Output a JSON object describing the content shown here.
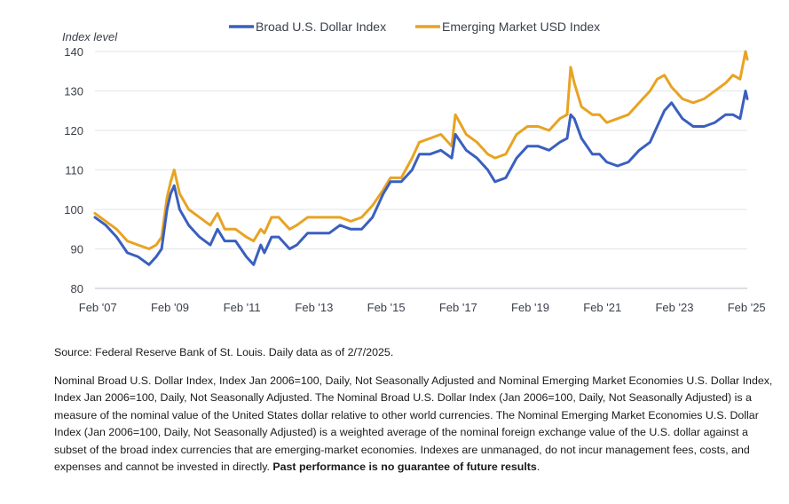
{
  "chart_data": {
    "type": "line",
    "ylabel": "Index level",
    "ylim": [
      80,
      140
    ],
    "yticks": [
      80,
      90,
      100,
      110,
      120,
      130,
      140
    ],
    "xlim": [
      2007.0,
      2025.1
    ],
    "xticks": [
      {
        "value": 2007.08,
        "label": "Feb '07"
      },
      {
        "value": 2009.08,
        "label": "Feb '09"
      },
      {
        "value": 2011.08,
        "label": "Feb '11"
      },
      {
        "value": 2013.08,
        "label": "Feb '13"
      },
      {
        "value": 2015.08,
        "label": "Feb '15"
      },
      {
        "value": 2017.08,
        "label": "Feb '17"
      },
      {
        "value": 2019.08,
        "label": "Feb '19"
      },
      {
        "value": 2021.08,
        "label": "Feb '21"
      },
      {
        "value": 2023.08,
        "label": "Feb '23"
      },
      {
        "value": 2025.08,
        "label": "Feb '25"
      }
    ],
    "grid": true,
    "legend": "top-center",
    "series": [
      {
        "name": "Broad U.S. Dollar Index",
        "color": "#3a5fbf",
        "x": [
          2007.0,
          2007.3,
          2007.6,
          2007.9,
          2008.2,
          2008.5,
          2008.7,
          2008.85,
          2009.0,
          2009.1,
          2009.2,
          2009.35,
          2009.6,
          2009.9,
          2010.2,
          2010.4,
          2010.6,
          2010.9,
          2011.2,
          2011.4,
          2011.6,
          2011.7,
          2011.9,
          2012.1,
          2012.4,
          2012.6,
          2012.9,
          2013.2,
          2013.5,
          2013.8,
          2014.1,
          2014.4,
          2014.7,
          2015.0,
          2015.2,
          2015.5,
          2015.8,
          2016.0,
          2016.3,
          2016.6,
          2016.9,
          2017.0,
          2017.3,
          2017.6,
          2017.9,
          2018.1,
          2018.4,
          2018.7,
          2019.0,
          2019.3,
          2019.6,
          2019.9,
          2020.1,
          2020.2,
          2020.3,
          2020.5,
          2020.8,
          2021.0,
          2021.2,
          2021.5,
          2021.8,
          2022.1,
          2022.4,
          2022.6,
          2022.8,
          2023.0,
          2023.3,
          2023.6,
          2023.9,
          2024.2,
          2024.5,
          2024.7,
          2024.9,
          2025.05,
          2025.1
        ],
        "y": [
          98,
          96,
          93,
          89,
          88,
          86,
          88,
          90,
          100,
          104,
          106,
          100,
          96,
          93,
          91,
          95,
          92,
          92,
          88,
          86,
          91,
          89,
          93,
          93,
          90,
          91,
          94,
          94,
          94,
          96,
          95,
          95,
          98,
          104,
          107,
          107,
          110,
          114,
          114,
          115,
          113,
          119,
          115,
          113,
          110,
          107,
          108,
          113,
          116,
          116,
          115,
          117,
          118,
          124,
          123,
          118,
          114,
          114,
          112,
          111,
          112,
          115,
          117,
          121,
          125,
          127,
          123,
          121,
          121,
          122,
          124,
          124,
          123,
          130,
          128
        ],
        "values": [
          98,
          96,
          93,
          89,
          88,
          86,
          88,
          90,
          100,
          104,
          106,
          100,
          96,
          93,
          91,
          95,
          92,
          92,
          88,
          86,
          91,
          89,
          93,
          93,
          90,
          91,
          94,
          94,
          94,
          96,
          95,
          95,
          98,
          104,
          107,
          107,
          110,
          114,
          114,
          115,
          113,
          119,
          115,
          113,
          110,
          107,
          108,
          113,
          116,
          116,
          115,
          117,
          118,
          124,
          123,
          118,
          114,
          114,
          112,
          111,
          112,
          115,
          117,
          121,
          125,
          127,
          123,
          121,
          121,
          122,
          124,
          124,
          123,
          130,
          128
        ]
      },
      {
        "name": "Emerging Market USD Index",
        "color": "#e8a322",
        "x": [
          2007.0,
          2007.3,
          2007.6,
          2007.9,
          2008.2,
          2008.5,
          2008.7,
          2008.85,
          2009.0,
          2009.1,
          2009.2,
          2009.35,
          2009.6,
          2009.9,
          2010.2,
          2010.4,
          2010.6,
          2010.9,
          2011.2,
          2011.4,
          2011.6,
          2011.7,
          2011.9,
          2012.1,
          2012.4,
          2012.6,
          2012.9,
          2013.2,
          2013.5,
          2013.8,
          2014.1,
          2014.4,
          2014.7,
          2015.0,
          2015.2,
          2015.5,
          2015.8,
          2016.0,
          2016.3,
          2016.6,
          2016.9,
          2017.0,
          2017.3,
          2017.6,
          2017.9,
          2018.1,
          2018.4,
          2018.7,
          2019.0,
          2019.3,
          2019.6,
          2019.9,
          2020.1,
          2020.2,
          2020.3,
          2020.5,
          2020.8,
          2021.0,
          2021.2,
          2021.5,
          2021.8,
          2022.1,
          2022.4,
          2022.6,
          2022.8,
          2023.0,
          2023.3,
          2023.6,
          2023.9,
          2024.2,
          2024.5,
          2024.7,
          2024.9,
          2025.05,
          2025.1
        ],
        "y": [
          99,
          97,
          95,
          92,
          91,
          90,
          91,
          93,
          103,
          107,
          110,
          104,
          100,
          98,
          96,
          99,
          95,
          95,
          93,
          92,
          95,
          94,
          98,
          98,
          95,
          96,
          98,
          98,
          98,
          98,
          97,
          98,
          101,
          105,
          108,
          108,
          113,
          117,
          118,
          119,
          116,
          124,
          119,
          117,
          114,
          113,
          114,
          119,
          121,
          121,
          120,
          123,
          124,
          136,
          132,
          126,
          124,
          124,
          122,
          123,
          124,
          127,
          130,
          133,
          134,
          131,
          128,
          127,
          128,
          130,
          132,
          134,
          133,
          140,
          138
        ],
        "values": [
          99,
          97,
          95,
          92,
          91,
          90,
          91,
          93,
          103,
          107,
          110,
          104,
          100,
          98,
          96,
          99,
          95,
          95,
          93,
          92,
          95,
          94,
          98,
          98,
          95,
          96,
          98,
          98,
          98,
          98,
          97,
          98,
          101,
          105,
          108,
          108,
          113,
          117,
          118,
          119,
          116,
          124,
          119,
          117,
          114,
          113,
          114,
          119,
          121,
          121,
          120,
          123,
          124,
          136,
          132,
          126,
          124,
          124,
          122,
          123,
          124,
          127,
          130,
          133,
          134,
          131,
          128,
          127,
          128,
          130,
          132,
          134,
          133,
          140,
          138
        ]
      }
    ]
  },
  "notes": {
    "source": "Source: Federal Reserve Bank of St. Louis. Daily data as of 2/7/2025.",
    "body": "Nominal Broad U.S. Dollar Index, Index Jan 2006=100, Daily, Not Seasonally Adjusted and Nominal Emerging Market Economies U.S. Dollar Index, Index Jan 2006=100, Daily, Not Seasonally Adjusted. The Nominal Broad U.S. Dollar Index (Jan 2006=100, Daily, Not Seasonally Adjusted) is a measure of the nominal value of the United States dollar relative to other world currencies. The Nominal Emerging Market Economies U.S. Dollar Index (Jan 2006=100, Daily, Not Seasonally Adjusted) is a weighted average of the nominal foreign exchange value of the U.S. dollar against a subset of the broad index currencies that are emerging-market economies. Indexes are unmanaged, do not incur management fees, costs, and expenses and cannot be invested in directly. ",
    "disclaimer": "Past performance is no guarantee of future results",
    "end": "."
  }
}
